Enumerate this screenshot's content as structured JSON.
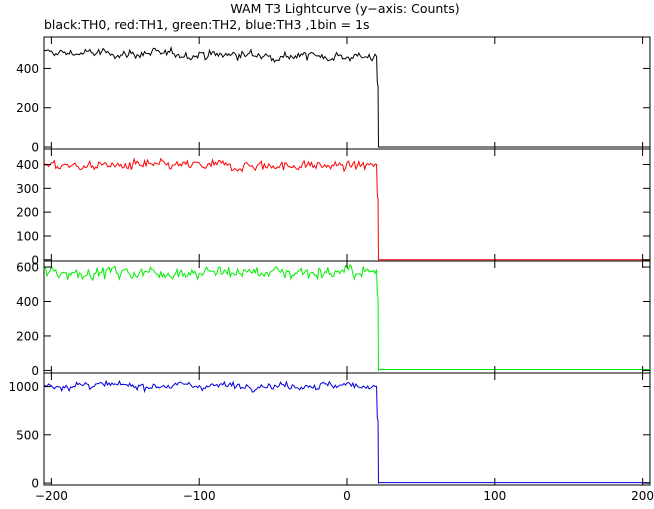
{
  "title": "WAM T3 Lightcurve (y−axis: Counts)",
  "subtitle": "black:TH0, red:TH1, green:TH2, blue:TH3 ,1bin = 1s",
  "chart_data": {
    "type": "line",
    "title": "WAM T3 Lightcurve (y−axis: Counts)",
    "subtitle": "black:TH0, red:TH1, green:TH2, blue:TH3 ,1bin = 1s",
    "x_range": [
      -205,
      205
    ],
    "x_ticks": [
      -200,
      -100,
      0,
      100,
      200
    ],
    "x_tick_labels": [
      "−200",
      "−100",
      "0",
      "100",
      "200"
    ],
    "cutoff_x": 21,
    "bin_seconds": 1,
    "grid": false,
    "panels": [
      {
        "name": "TH0",
        "color": "#000000",
        "ylim": [
          -10,
          560
        ],
        "y_ticks": [
          0,
          200,
          400
        ],
        "y_tick_labels": [
          "0",
          "200",
          "400"
        ],
        "level_before": 480,
        "noise": 22,
        "trend": -20,
        "transition": [
          310,
          0
        ],
        "level_after": 0
      },
      {
        "name": "TH1",
        "color": "#ff0000",
        "ylim": [
          -5,
          465
        ],
        "y_ticks": [
          0,
          100,
          200,
          300,
          400
        ],
        "y_tick_labels": [
          "0",
          "100",
          "200",
          "300",
          "400"
        ],
        "level_before": 395,
        "noise": 20,
        "trend": 0,
        "transition": [
          255,
          0
        ],
        "level_after": 0
      },
      {
        "name": "TH2",
        "color": "#00ee00",
        "ylim": [
          -15,
          635
        ],
        "y_ticks": [
          0,
          200,
          400,
          600
        ],
        "y_tick_labels": [
          "0",
          "200",
          "400",
          "600"
        ],
        "level_before": 570,
        "noise": 35,
        "trend": 0,
        "transition": [
          420,
          0
        ],
        "level_after": 5
      },
      {
        "name": "TH3",
        "color": "#0000dd",
        "ylim": [
          -20,
          1140
        ],
        "y_ticks": [
          0,
          500,
          1000
        ],
        "y_tick_labels": [
          "0",
          "500",
          "1000"
        ],
        "level_before": 1010,
        "noise": 35,
        "trend": 0,
        "transition": [
          650,
          0
        ],
        "level_after": 5
      }
    ]
  }
}
